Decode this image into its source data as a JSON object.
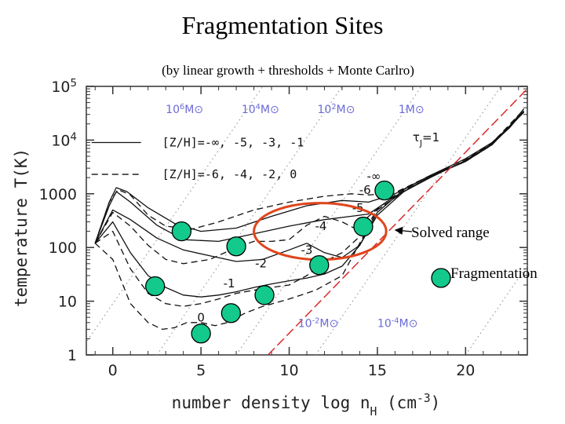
{
  "title": "Fragmentation Sites",
  "subtitle": "(by linear growth + thresholds + Monte Carlro)",
  "chart_data": {
    "type": "line",
    "xlabel": "number density log n",
    "xlabel_sub": "H",
    "xlabel_unit": "(cm",
    "xlabel_unit_sup": "-3",
    "xlabel_unit_end": ")",
    "ylabel": "temperature T(K)",
    "xlim": [
      -1.5,
      23.5
    ],
    "ylim": [
      1,
      100000
    ],
    "yscale": "log",
    "x_ticks": [
      "0",
      "5",
      "10",
      "15",
      "20"
    ],
    "x_tick_values": [
      0,
      5,
      10,
      15,
      20
    ],
    "y_ticks": [
      {
        "value": 1,
        "label": "1"
      },
      {
        "value": 10,
        "label": "10"
      },
      {
        "value": 100,
        "label": "100"
      },
      {
        "value": 1000,
        "label": "1000"
      },
      {
        "value": 10000,
        "label": "10",
        "sup": "4"
      },
      {
        "value": 100000,
        "label": "10",
        "sup": "5"
      }
    ],
    "legend": [
      {
        "style": "solid",
        "text": "[Z/H]=-∞, -5, -3, -1"
      },
      {
        "style": "dashed",
        "text": "[Z/H]=-6, -4, -2, 0"
      }
    ],
    "mass_labels_top": [
      {
        "text": "10",
        "sup": "6",
        "unit": "M⊙"
      },
      {
        "text": "10",
        "sup": "4",
        "unit": "M⊙"
      },
      {
        "text": "10",
        "sup": "2",
        "unit": "M⊙"
      },
      {
        "text": "1M⊙",
        "sup": "",
        "unit": ""
      }
    ],
    "mass_labels_bottom": [
      {
        "text": "10",
        "sup": "-2",
        "unit": "M⊙"
      },
      {
        "text": "10",
        "sup": "-4",
        "unit": "M⊙"
      }
    ],
    "tau_label": "τ",
    "tau_sub": "J",
    "tau_value": "=1",
    "curve_labels": [
      {
        "text": "-∞",
        "x": 14.8,
        "y": 1800
      },
      {
        "text": "-6",
        "x": 14.3,
        "y": 1000
      },
      {
        "text": "-5",
        "x": 13.9,
        "y": 460
      },
      {
        "text": "-4",
        "x": 11.8,
        "y": 210
      },
      {
        "text": "-3",
        "x": 11.0,
        "y": 75
      },
      {
        "text": "-2",
        "x": 8.4,
        "y": 43
      },
      {
        "text": "-1",
        "x": 6.6,
        "y": 18
      },
      {
        "text": "0",
        "x": 5.0,
        "y": 4.2
      }
    ],
    "series": [
      {
        "style": "solid",
        "x": [
          -1.0,
          -0.2,
          0.2,
          0.8,
          2,
          3.5,
          5,
          7,
          9,
          11,
          13,
          14.5,
          16,
          18,
          20,
          21.5,
          22.5,
          23.3
        ],
        "y": [
          120,
          700,
          1300,
          1100,
          550,
          280,
          200,
          230,
          380,
          600,
          750,
          700,
          1000,
          2200,
          4500,
          9000,
          18000,
          38000
        ]
      },
      {
        "style": "solid",
        "x": [
          -1.0,
          -0.2,
          0.2,
          1,
          2.5,
          4,
          6,
          8,
          10,
          12,
          13.5,
          14.5,
          16,
          18,
          20,
          21.5,
          22.5,
          23.3
        ],
        "y": [
          120,
          600,
          1100,
          700,
          260,
          140,
          130,
          180,
          250,
          330,
          380,
          420,
          900,
          2000,
          4200,
          8500,
          17000,
          35000
        ]
      },
      {
        "style": "solid",
        "x": [
          -1.0,
          0,
          1,
          2.5,
          4,
          5.5,
          7,
          8.5,
          10,
          11,
          12,
          13,
          14,
          15,
          16.5,
          18,
          20,
          21.5,
          23.3
        ],
        "y": [
          120,
          500,
          330,
          150,
          90,
          70,
          55,
          60,
          90,
          120,
          80,
          65,
          110,
          400,
          1100,
          2100,
          4000,
          8500,
          34000
        ]
      },
      {
        "style": "solid",
        "x": [
          -1.0,
          0,
          1,
          2,
          3,
          4,
          5,
          6,
          7,
          8,
          9,
          10,
          11,
          12,
          13,
          14,
          15,
          16.5,
          18,
          20,
          21.5,
          23.3
        ],
        "y": [
          120,
          300,
          80,
          30,
          18,
          13,
          12,
          13,
          15,
          18,
          21,
          24,
          27,
          32,
          45,
          110,
          450,
          1200,
          2200,
          4000,
          8200,
          33000
        ]
      },
      {
        "style": "dashed",
        "x": [
          -1.0,
          -0.2,
          0.3,
          1,
          2,
          3,
          4.5,
          6,
          8,
          10,
          12,
          13.5,
          14.5,
          16,
          18,
          20,
          21.5,
          23.3
        ],
        "y": [
          120,
          700,
          1200,
          950,
          400,
          250,
          220,
          300,
          500,
          700,
          900,
          1000,
          950,
          1050,
          2200,
          4400,
          8800,
          37000
        ]
      },
      {
        "style": "dashed",
        "x": [
          -1.0,
          0,
          1,
          2,
          3,
          4,
          5.5,
          7,
          8,
          9,
          10,
          11,
          12,
          13,
          13.8,
          14.5,
          16,
          18,
          20,
          21.5,
          23.3
        ],
        "y": [
          120,
          450,
          250,
          110,
          60,
          50,
          60,
          100,
          130,
          130,
          140,
          260,
          380,
          300,
          220,
          380,
          950,
          2050,
          4100,
          8300,
          34000
        ]
      },
      {
        "style": "dashed",
        "x": [
          -1.0,
          0,
          1,
          2,
          3,
          4,
          5,
          6,
          7,
          8,
          9,
          10,
          11,
          12,
          13,
          14,
          15,
          16.5,
          18,
          20,
          21.5,
          23.3
        ],
        "y": [
          120,
          200,
          40,
          14,
          9,
          8,
          9,
          11,
          14,
          16,
          18,
          20,
          30,
          55,
          80,
          160,
          500,
          1100,
          2100,
          4000,
          8200,
          33000
        ]
      },
      {
        "style": "dashed",
        "x": [
          -1.0,
          0,
          1,
          2,
          2.8,
          3.5,
          4.2,
          5,
          5.8,
          6.5,
          7.5,
          8.5,
          10,
          11.5,
          13,
          14,
          15,
          16.5,
          18,
          20,
          21.5,
          23.3
        ],
        "y": [
          120,
          60,
          9,
          4,
          3,
          3.2,
          4,
          4,
          3.5,
          4,
          6,
          8,
          11,
          16,
          30,
          120,
          500,
          1100,
          2100,
          4000,
          8200,
          33000
        ]
      }
    ],
    "fragmentation_points": [
      {
        "x": 3.9,
        "y": 200
      },
      {
        "x": 7.0,
        "y": 105
      },
      {
        "x": 2.4,
        "y": 19
      },
      {
        "x": 5.0,
        "y": 2.5
      },
      {
        "x": 6.7,
        "y": 6
      },
      {
        "x": 8.6,
        "y": 13
      },
      {
        "x": 11.7,
        "y": 47
      },
      {
        "x": 14.2,
        "y": 245
      },
      {
        "x": 15.4,
        "y": 1150
      }
    ],
    "solved_range": {
      "x_start": 8.0,
      "x_end": 15.5,
      "y_center": 200,
      "label": "Solved range"
    },
    "fragmentation_legend_label": "Fragmentation"
  },
  "colors": {
    "marker_fill": "#14c98c",
    "ellipse": "#e0451c",
    "tau_line": "#d92a2a",
    "mass_label": "#6a6ad8",
    "dotted_lines": "#9a9a9a"
  }
}
